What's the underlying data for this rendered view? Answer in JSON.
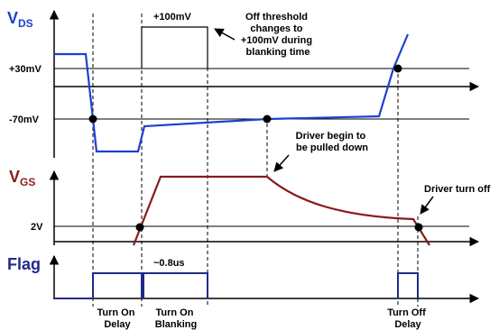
{
  "signals": {
    "vds": {
      "main": "V",
      "sub": "DS",
      "color": "#1f3fd0"
    },
    "vgs": {
      "main": "V",
      "sub": "GS",
      "color": "#8b1a1a"
    },
    "flag": {
      "label": "Flag",
      "color": "#1f2a8c"
    }
  },
  "levels": {
    "plus30": "+30mV",
    "minus70": "-70mV",
    "plus100": "+100mV",
    "v2": "2V"
  },
  "annotations": {
    "off_threshold": [
      "Off threshold",
      "changes to",
      "+100mV during",
      "blanking time"
    ],
    "driver_pulled": [
      "Driver begin to",
      "be pulled down"
    ],
    "driver_off": "Driver turn off",
    "blank_time": "~0.8us"
  },
  "phases": {
    "turn_on_delay": [
      "Turn On",
      "Delay"
    ],
    "turn_on_blanking": [
      "Turn On",
      "Blanking"
    ],
    "turn_off_delay": [
      "Turn Off",
      "Delay"
    ]
  }
}
